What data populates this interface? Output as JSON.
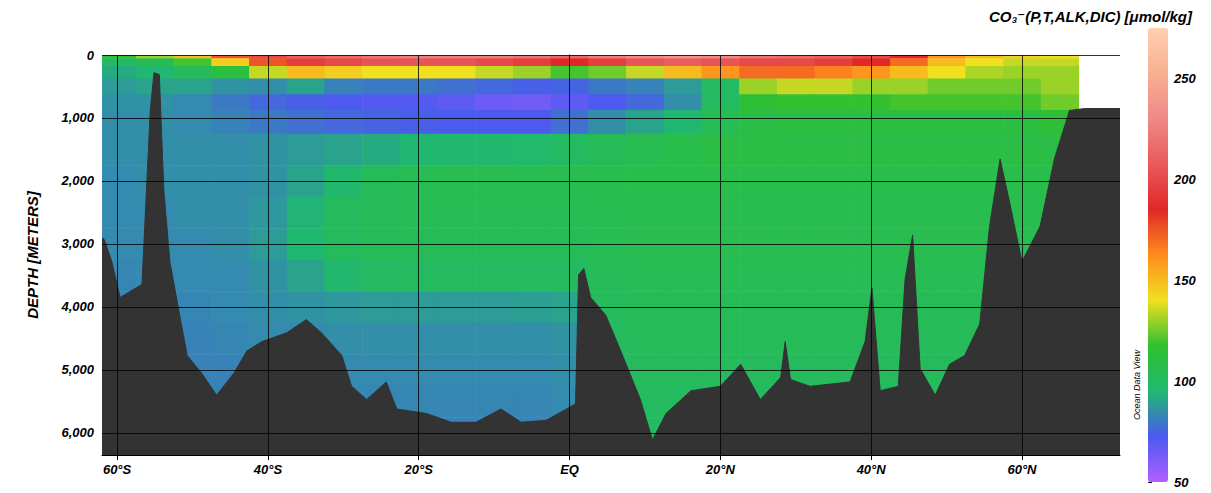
{
  "chart_data": {
    "type": "heatmap",
    "title": "CO₃⁻(P,T,ALK,DIC) [μmol/kg]",
    "y_label": "DEPTH [METERS]",
    "annotation": "Ocean Data View",
    "x": [
      -60,
      -55,
      -50,
      -45,
      -40,
      -35,
      -30,
      -25,
      -20,
      -15,
      -10,
      -5,
      0,
      5,
      10,
      15,
      20,
      25,
      30,
      35,
      40,
      45,
      50,
      55,
      60,
      65
    ],
    "y": [
      0,
      100,
      250,
      500,
      750,
      1000,
      1500,
      2000,
      2500,
      3000,
      3500,
      4000,
      4500,
      5000,
      5500,
      6000
    ],
    "values": [
      [
        115,
        130,
        150,
        175,
        200,
        210,
        215,
        220,
        225,
        225,
        225,
        220,
        215,
        225,
        230,
        235,
        230,
        220,
        215,
        210,
        200,
        185,
        160,
        150,
        145,
        140
      ],
      [
        100,
        105,
        120,
        145,
        175,
        195,
        200,
        205,
        205,
        205,
        200,
        195,
        185,
        195,
        205,
        210,
        205,
        200,
        200,
        195,
        185,
        170,
        150,
        140,
        135,
        135
      ],
      [
        92,
        95,
        102,
        112,
        135,
        150,
        145,
        140,
        140,
        140,
        135,
        130,
        120,
        125,
        135,
        150,
        160,
        170,
        170,
        165,
        160,
        150,
        140,
        132,
        130,
        130
      ],
      [
        88,
        90,
        90,
        86,
        85,
        90,
        82,
        80,
        80,
        78,
        76,
        74,
        75,
        80,
        82,
        88,
        100,
        130,
        135,
        135,
        130,
        130,
        125,
        125,
        125,
        130
      ],
      [
        86,
        86,
        84,
        80,
        76,
        74,
        72,
        70,
        70,
        68,
        65,
        64,
        68,
        72,
        76,
        85,
        100,
        115,
        118,
        118,
        118,
        120,
        120,
        120,
        120,
        125
      ],
      [
        85,
        85,
        84,
        82,
        80,
        78,
        76,
        75,
        74,
        73,
        72,
        72,
        78,
        85,
        90,
        95,
        105,
        110,
        112,
        112,
        112,
        112,
        112,
        112,
        112,
        115
      ],
      [
        85,
        85,
        85,
        85,
        86,
        88,
        90,
        92,
        95,
        96,
        96,
        97,
        100,
        104,
        106,
        108,
        110,
        110,
        110,
        110,
        110,
        110,
        110,
        110,
        110,
        110
      ],
      [
        84,
        85,
        85,
        85,
        86,
        90,
        96,
        103,
        105,
        106,
        106,
        106,
        106,
        107,
        108,
        108,
        108,
        108,
        108,
        108,
        108,
        108,
        108,
        108,
        108,
        108
      ],
      [
        84,
        84,
        85,
        85,
        87,
        94,
        102,
        104,
        105,
        105,
        105,
        105,
        105,
        106,
        107,
        107,
        107,
        107,
        107,
        107,
        107,
        107,
        107,
        107,
        107,
        107
      ],
      [
        84,
        84,
        84,
        85,
        88,
        95,
        102,
        104,
        104,
        104,
        104,
        104,
        104,
        105,
        106,
        106,
        106,
        106,
        106,
        106,
        106,
        106,
        106,
        106,
        106,
        106
      ],
      [
        83,
        84,
        84,
        84,
        86,
        90,
        96,
        100,
        101,
        101,
        101,
        101,
        101,
        104,
        105,
        105,
        105,
        105,
        105,
        105,
        105,
        105,
        105,
        105,
        105,
        105
      ],
      [
        83,
        83,
        83,
        84,
        85,
        86,
        87,
        88,
        88,
        88,
        88,
        89,
        90,
        102,
        104,
        104,
        104,
        104,
        104,
        104,
        104,
        104,
        104,
        104,
        104,
        104
      ],
      [
        82,
        82,
        82,
        83,
        84,
        84,
        85,
        85,
        85,
        85,
        85,
        85,
        86,
        101,
        103,
        103,
        103,
        103,
        103,
        103,
        103,
        103,
        103,
        103,
        103,
        103
      ],
      [
        82,
        82,
        82,
        82,
        83,
        83,
        84,
        84,
        84,
        84,
        84,
        84,
        85,
        100,
        102,
        102,
        102,
        102,
        102,
        102,
        102,
        102,
        102,
        102,
        102,
        102
      ],
      [
        82,
        82,
        82,
        82,
        82,
        82,
        83,
        83,
        83,
        83,
        83,
        83,
        84,
        100,
        101,
        101,
        101,
        101,
        101,
        101,
        101,
        101,
        101,
        101,
        101,
        101
      ],
      [
        82,
        82,
        82,
        82,
        82,
        82,
        82,
        82,
        82,
        82,
        82,
        82,
        83,
        100,
        100,
        100,
        100,
        100,
        100,
        100,
        100,
        100,
        100,
        100,
        100,
        100
      ]
    ],
    "xlim": [
      -62,
      73
    ],
    "xticks": [
      {
        "value": -60,
        "label": "60°S"
      },
      {
        "value": -40,
        "label": "40°S"
      },
      {
        "value": -20,
        "label": "20°S"
      },
      {
        "value": 0,
        "label": "EQ"
      },
      {
        "value": 20,
        "label": "20°N"
      },
      {
        "value": 40,
        "label": "40°N"
      },
      {
        "value": 60,
        "label": "60°N"
      }
    ],
    "ylim": [
      6350,
      0
    ],
    "yticks": [
      0,
      1000,
      2000,
      3000,
      4000,
      5000,
      6000
    ],
    "colorbar_range": [
      50,
      275
    ],
    "colorbar_ticks": [
      50,
      100,
      150,
      200,
      250
    ],
    "bathymetry": {
      "color": "#333333",
      "x": [
        -62,
        -61.7,
        -60.7,
        -59.6,
        -56.7,
        -55.6,
        -55.1,
        -54.4,
        -53.8,
        -53,
        -51.7,
        -50.7,
        -48.8,
        -46.8,
        -44.5,
        -42.8,
        -40.8,
        -37.5,
        -34.9,
        -32.9,
        -30.2,
        -28.9,
        -26.9,
        -24.3,
        -22.9,
        -19,
        -15.7,
        -12.4,
        -9.1,
        -6.4,
        -3.1,
        0.8,
        1.2,
        1.9,
        2.8,
        4.8,
        6.8,
        9.4,
        11,
        12.8,
        16.1,
        20,
        22.7,
        25.3,
        28,
        28.6,
        29.3,
        31.9,
        37.2,
        39.2,
        40.1,
        41.2,
        43.6,
        44.5,
        45.5,
        46.5,
        48.5,
        50.4,
        52.4,
        54.4,
        55.7,
        57.1,
        58.4,
        60,
        62.4,
        64.3,
        66.3,
        68.3,
        73
      ],
      "depth": [
        2900,
        2930,
        3280,
        3850,
        3640,
        880,
        280,
        310,
        2150,
        3280,
        4130,
        4770,
        5050,
        5400,
        5050,
        4700,
        4550,
        4410,
        4200,
        4410,
        4770,
        5260,
        5470,
        5190,
        5620,
        5690,
        5830,
        5830,
        5620,
        5830,
        5800,
        5540,
        3490,
        3390,
        3850,
        4130,
        4700,
        5470,
        6110,
        5690,
        5330,
        5260,
        4910,
        5470,
        5120,
        4550,
        5150,
        5260,
        5190,
        4550,
        3700,
        5330,
        5260,
        3560,
        2860,
        4980,
        5400,
        4910,
        4770,
        4270,
        2720,
        1650,
        2360,
        3280,
        2720,
        1650,
        880,
        850,
        850
      ]
    },
    "grid": true
  }
}
